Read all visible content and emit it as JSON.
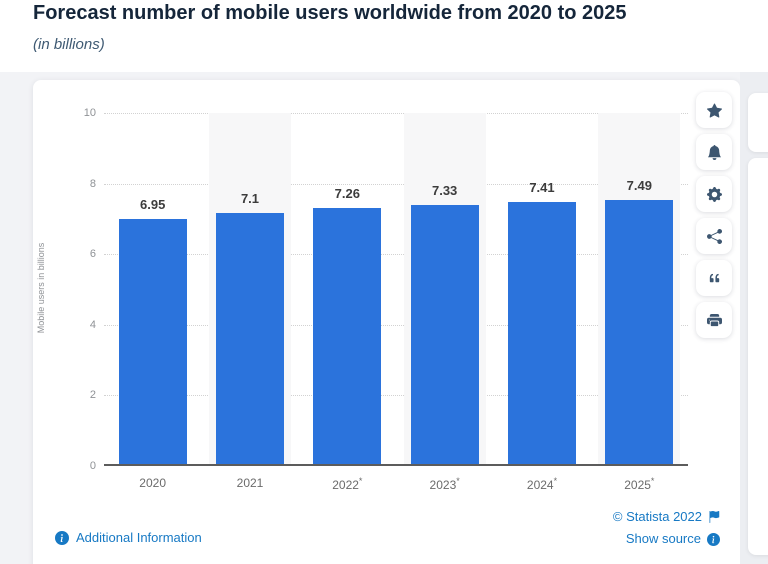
{
  "header": {
    "title": "Forecast number of mobile users worldwide from 2020 to 2025",
    "subtitle": "(in billions)"
  },
  "chart_data": {
    "type": "bar",
    "title": "Forecast number of mobile users worldwide from 2020 to 2025 (in billions)",
    "categories": [
      "2020",
      "2021",
      "2022*",
      "2023*",
      "2024*",
      "2025*"
    ],
    "values": [
      6.95,
      7.1,
      7.26,
      7.33,
      7.41,
      7.49
    ],
    "value_labels": [
      "6.95",
      "7.1",
      "7.26",
      "7.33",
      "7.41",
      "7.49"
    ],
    "xlabel": "",
    "ylabel": "Mobile users in billions",
    "ylim": [
      0,
      10
    ],
    "yticks": [
      0,
      2,
      4,
      6,
      8,
      10
    ],
    "grid": "horizontal-dotted",
    "legend": "none",
    "bar_color": "#2b73dc",
    "band_color": "#f7f7f8",
    "band_columns": [
      1,
      3,
      5
    ]
  },
  "toolbar": {
    "buttons": [
      {
        "icon": "star-icon",
        "action": "favorite"
      },
      {
        "icon": "bell-icon",
        "action": "alert"
      },
      {
        "icon": "gear-icon",
        "action": "settings"
      },
      {
        "icon": "share-icon",
        "action": "share"
      },
      {
        "icon": "quote-icon",
        "action": "cite"
      },
      {
        "icon": "printer-icon",
        "action": "print"
      }
    ]
  },
  "footer": {
    "additional_info_label": "Additional Information",
    "copyright_label": "© Statista 2022",
    "show_source_label": "Show source"
  },
  "colors": {
    "accent_blue": "#2b73dc",
    "link_blue": "#1779c4",
    "title_navy": "#15263a",
    "icon_navy": "#3d5670",
    "section_bg": "#f2f3f6"
  }
}
